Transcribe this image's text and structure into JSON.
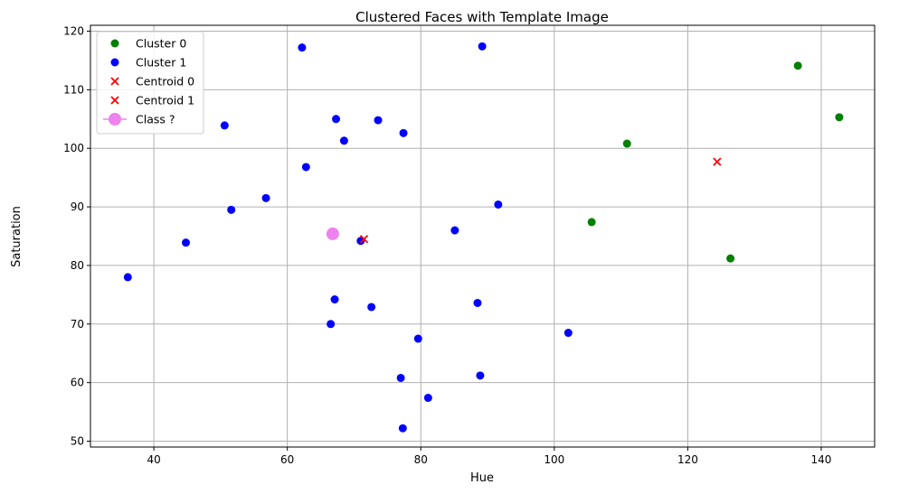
{
  "chart_data": {
    "type": "scatter",
    "title": "Clustered Faces with Template Image",
    "xlabel": "Hue",
    "ylabel": "Saturation",
    "xlim": [
      30.5,
      148
    ],
    "ylim": [
      49,
      121
    ],
    "xticks": [
      40,
      60,
      80,
      100,
      120,
      140
    ],
    "yticks": [
      50,
      60,
      70,
      80,
      90,
      100,
      110,
      120
    ],
    "grid": true,
    "legend_placement": "top-left",
    "series": [
      {
        "name": "Cluster 0",
        "marker": "circle",
        "color": "#008000",
        "points": [
          [
            136.5,
            114.1
          ],
          [
            142.7,
            105.3
          ],
          [
            110.9,
            100.8
          ],
          [
            105.6,
            87.4
          ],
          [
            126.4,
            81.2
          ]
        ]
      },
      {
        "name": "Cluster 1",
        "marker": "circle",
        "color": "#0000ff",
        "points": [
          [
            62.2,
            117.2
          ],
          [
            89.2,
            117.4
          ],
          [
            50.6,
            103.9
          ],
          [
            67.3,
            105.0
          ],
          [
            73.6,
            104.8
          ],
          [
            77.4,
            102.6
          ],
          [
            68.5,
            101.3
          ],
          [
            62.8,
            96.8
          ],
          [
            56.8,
            91.5
          ],
          [
            51.6,
            89.5
          ],
          [
            91.6,
            90.4
          ],
          [
            85.1,
            86.0
          ],
          [
            44.8,
            83.9
          ],
          [
            71.0,
            84.2
          ],
          [
            36.1,
            78.0
          ],
          [
            67.1,
            74.2
          ],
          [
            88.5,
            73.6
          ],
          [
            72.6,
            72.9
          ],
          [
            66.5,
            70.0
          ],
          [
            102.1,
            68.5
          ],
          [
            79.6,
            67.5
          ],
          [
            77.0,
            60.8
          ],
          [
            88.9,
            61.2
          ],
          [
            81.1,
            57.4
          ],
          [
            77.3,
            52.2
          ]
        ]
      },
      {
        "name": "Centroid 0",
        "marker": "x",
        "color": "#ff0000",
        "points": [
          [
            124.4,
            97.7
          ]
        ]
      },
      {
        "name": "Centroid 1",
        "marker": "x",
        "color": "#ff0000",
        "points": [
          [
            71.5,
            84.5
          ]
        ]
      },
      {
        "name": " Class ?",
        "marker": "big-circle",
        "color": "#ee82ee",
        "points": [
          [
            66.8,
            85.4
          ]
        ]
      }
    ]
  }
}
